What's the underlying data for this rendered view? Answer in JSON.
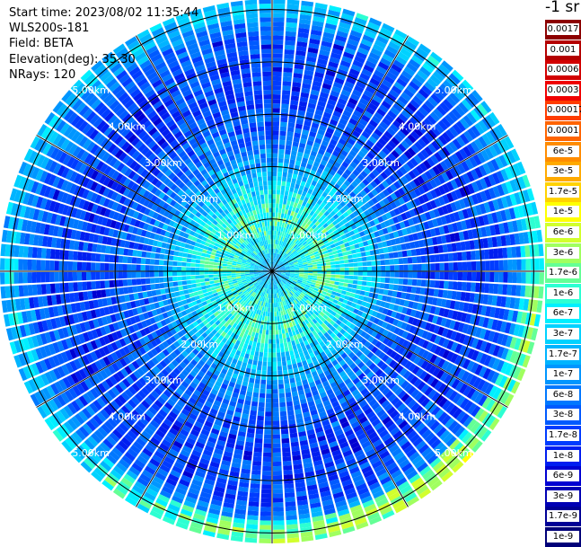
{
  "header": {
    "start_time": "Start time: 2023/08/02 11:35:44",
    "instrument": "WLS200s-181",
    "field": "Field: BETA",
    "elevation": "Elevation(deg): 35.30",
    "nrays": "NRays: 120"
  },
  "legend": {
    "unit": "-1 sr",
    "items": [
      {
        "label": "0.0017",
        "color": "#8c0000"
      },
      {
        "label": "0.001",
        "color": "#b40000"
      },
      {
        "label": "0.0006",
        "color": "#d20000"
      },
      {
        "label": "0.0003",
        "color": "#f00000"
      },
      {
        "label": "0.00017",
        "color": "#ff3c00"
      },
      {
        "label": "0.0001",
        "color": "#ff6400"
      },
      {
        "label": "6e-5",
        "color": "#ff8c00"
      },
      {
        "label": "3e-5",
        "color": "#ffaa00"
      },
      {
        "label": "1.7e-5",
        "color": "#ffd200"
      },
      {
        "label": "1e-5",
        "color": "#ffff00"
      },
      {
        "label": "6e-6",
        "color": "#d2ff2d"
      },
      {
        "label": "3e-6",
        "color": "#a0ff5f"
      },
      {
        "label": "1.7e-6",
        "color": "#64ff96"
      },
      {
        "label": "1e-6",
        "color": "#2dffd2"
      },
      {
        "label": "6e-7",
        "color": "#00f0ff"
      },
      {
        "label": "3e-7",
        "color": "#00d2ff"
      },
      {
        "label": "1.7e-7",
        "color": "#00b4ff"
      },
      {
        "label": "1e-7",
        "color": "#0096ff"
      },
      {
        "label": "6e-8",
        "color": "#0078ff"
      },
      {
        "label": "3e-8",
        "color": "#005aff"
      },
      {
        "label": "1.7e-8",
        "color": "#003cff"
      },
      {
        "label": "1e-8",
        "color": "#001ef0"
      },
      {
        "label": "6e-9",
        "color": "#0000d2"
      },
      {
        "label": "3e-9",
        "color": "#0000b4"
      },
      {
        "label": "1.7e-9",
        "color": "#000096"
      },
      {
        "label": "1e-9",
        "color": "#000078"
      }
    ]
  },
  "chart_data": {
    "type": "heatmap",
    "projection": "polar",
    "rays": 120,
    "range_rings_km": [
      1,
      2,
      3,
      4,
      5
    ],
    "max_range_km": 5.2,
    "azimuth_lines_deg": [
      0,
      30,
      60,
      90,
      120,
      150,
      180,
      210,
      240,
      270,
      300,
      330
    ],
    "ring_labels": [
      "1.00km",
      "2.00km",
      "3.00km",
      "4.00km",
      "5.00km"
    ],
    "color_scale": "log",
    "value_range": [
      1e-09,
      0.0017
    ],
    "profile_log10_by_range": [
      {
        "range_km": 0.0,
        "value": -7.0
      },
      {
        "range_km": 0.5,
        "value": -6.2
      },
      {
        "range_km": 1.0,
        "value": -6.0
      },
      {
        "range_km": 1.5,
        "value": -6.3
      },
      {
        "range_km": 2.5,
        "value": -7.3
      },
      {
        "range_km": 3.5,
        "value": -7.7
      },
      {
        "range_km": 4.5,
        "value": -7.5
      },
      {
        "range_km": 5.0,
        "value": -6.6
      }
    ]
  }
}
